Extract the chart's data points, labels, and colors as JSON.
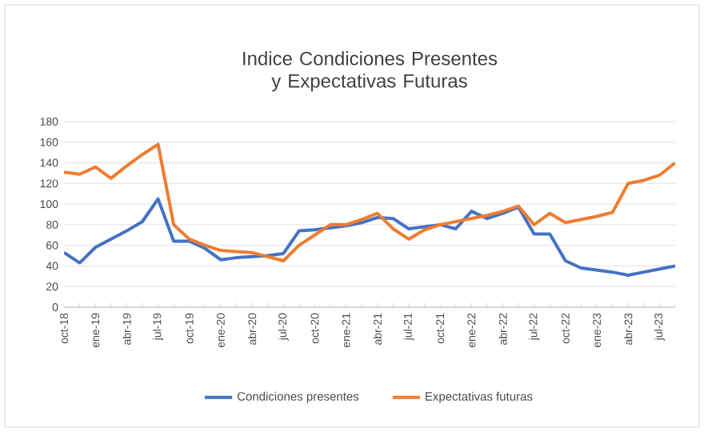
{
  "chart_data": {
    "type": "line",
    "title": "Indice Condiciones Presentes y Expectativas Futuras",
    "categories": [
      "oct-18",
      null,
      "ene-19",
      null,
      "abr-19",
      null,
      "jul-19",
      null,
      "oct-19",
      null,
      "ene-20",
      null,
      "abr-20",
      null,
      "jul-20",
      null,
      "oct-20",
      null,
      "ene-21",
      null,
      "abr-21",
      null,
      "jul-21",
      null,
      "oct-21",
      null,
      "ene-22",
      null,
      "abr-22",
      null,
      "jul-22",
      null,
      "oct-22",
      null,
      "ene-23",
      null,
      "abr-23",
      null,
      "jul-23",
      null
    ],
    "series": [
      {
        "name": "Condiciones presentes",
        "color": "#4472c4",
        "values": [
          53,
          43,
          58,
          66,
          74,
          83,
          105,
          64,
          64,
          57,
          46,
          48,
          49,
          50,
          52,
          74,
          75,
          77,
          79,
          82,
          87,
          86,
          76,
          78,
          80,
          76,
          93,
          86,
          91,
          97,
          71,
          71,
          45,
          38,
          36,
          34,
          31,
          34,
          37,
          40
        ]
      },
      {
        "name": "Expectativas futuras",
        "color": "#ed7d31",
        "values": [
          131,
          129,
          136,
          125,
          137,
          148,
          158,
          80,
          66,
          60,
          55,
          54,
          53,
          49,
          45,
          60,
          70,
          80,
          80,
          85,
          91,
          76,
          66,
          75,
          80,
          83,
          86,
          89,
          93,
          98,
          80,
          91,
          82,
          85,
          88,
          92,
          120,
          123,
          128,
          140
        ]
      }
    ],
    "ylim": [
      0,
      180
    ],
    "yticks": [
      0,
      20,
      40,
      60,
      80,
      100,
      120,
      140,
      160,
      180
    ],
    "grid": "y",
    "legend": "bottom",
    "marker": "none",
    "line_style": "solid"
  }
}
